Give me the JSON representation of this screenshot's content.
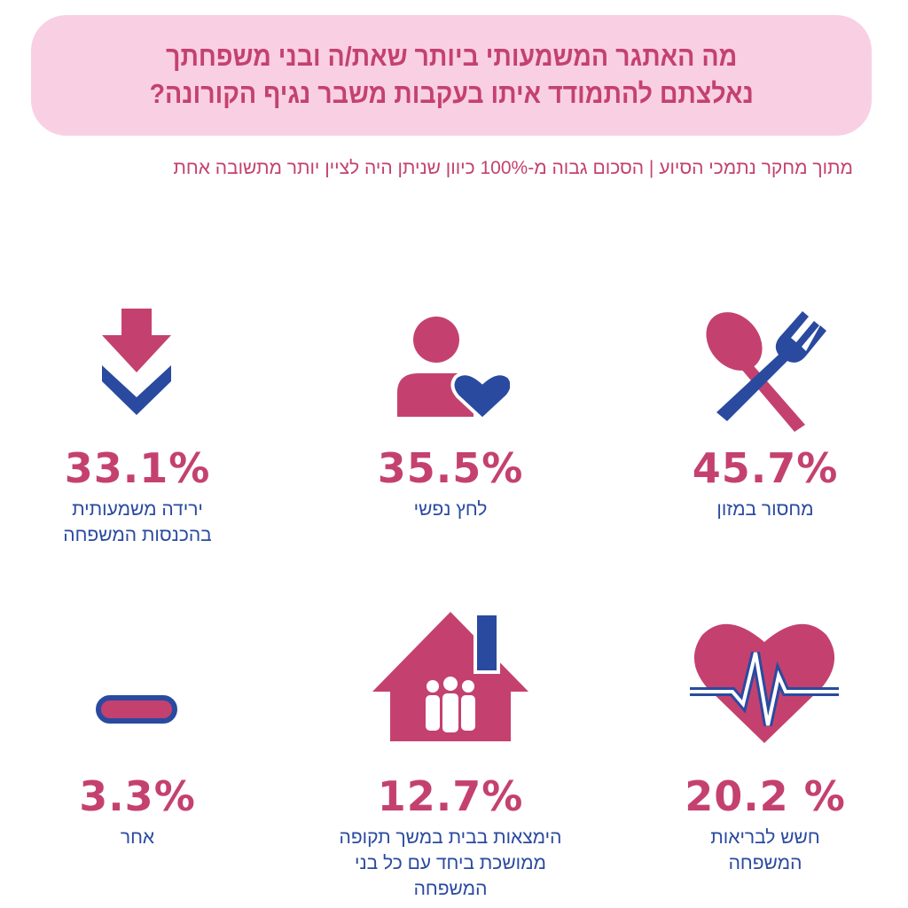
{
  "header": {
    "title_line1": "מה האתגר המשמעותי ביותר שאת/ה ובני משפחתך",
    "title_line2": "נאלצתם להתמודד איתו בעקבות משבר נגיף הקורונה?",
    "subtitle": "מתוך מחקר נתמכי הסיוע | הסכום גבוה מ-100% כיוון שניתן היה לציין יותר מתשובה אחת"
  },
  "colors": {
    "accent": "#c4416f",
    "secondary": "#2a4aa0",
    "banner_bg": "#f9d0e3"
  },
  "items": [
    {
      "icon": "spoon-fork-icon",
      "value": "45.7%",
      "label_line1": "מחסור במזון",
      "label_line2": ""
    },
    {
      "icon": "person-heart-icon",
      "value": "35.5%",
      "label_line1": "לחץ נפשי",
      "label_line2": ""
    },
    {
      "icon": "arrow-down-icon",
      "value": "33.1%",
      "label_line1": "ירידה משמעותית",
      "label_line2": "בהכנסות המשפחה"
    },
    {
      "icon": "heart-pulse-icon",
      "value": "20.2 %",
      "label_line1": "חשש לבריאות",
      "label_line2": "המשפחה"
    },
    {
      "icon": "house-family-icon",
      "value": "12.7%",
      "label_line1": "הימצאות בבית במשך תקופה",
      "label_line2": "ממושכת ביחד עם כל בני המשפחה"
    },
    {
      "icon": "minus-bar-icon",
      "value": "3.3%",
      "label_line1": "אחר",
      "label_line2": ""
    }
  ]
}
